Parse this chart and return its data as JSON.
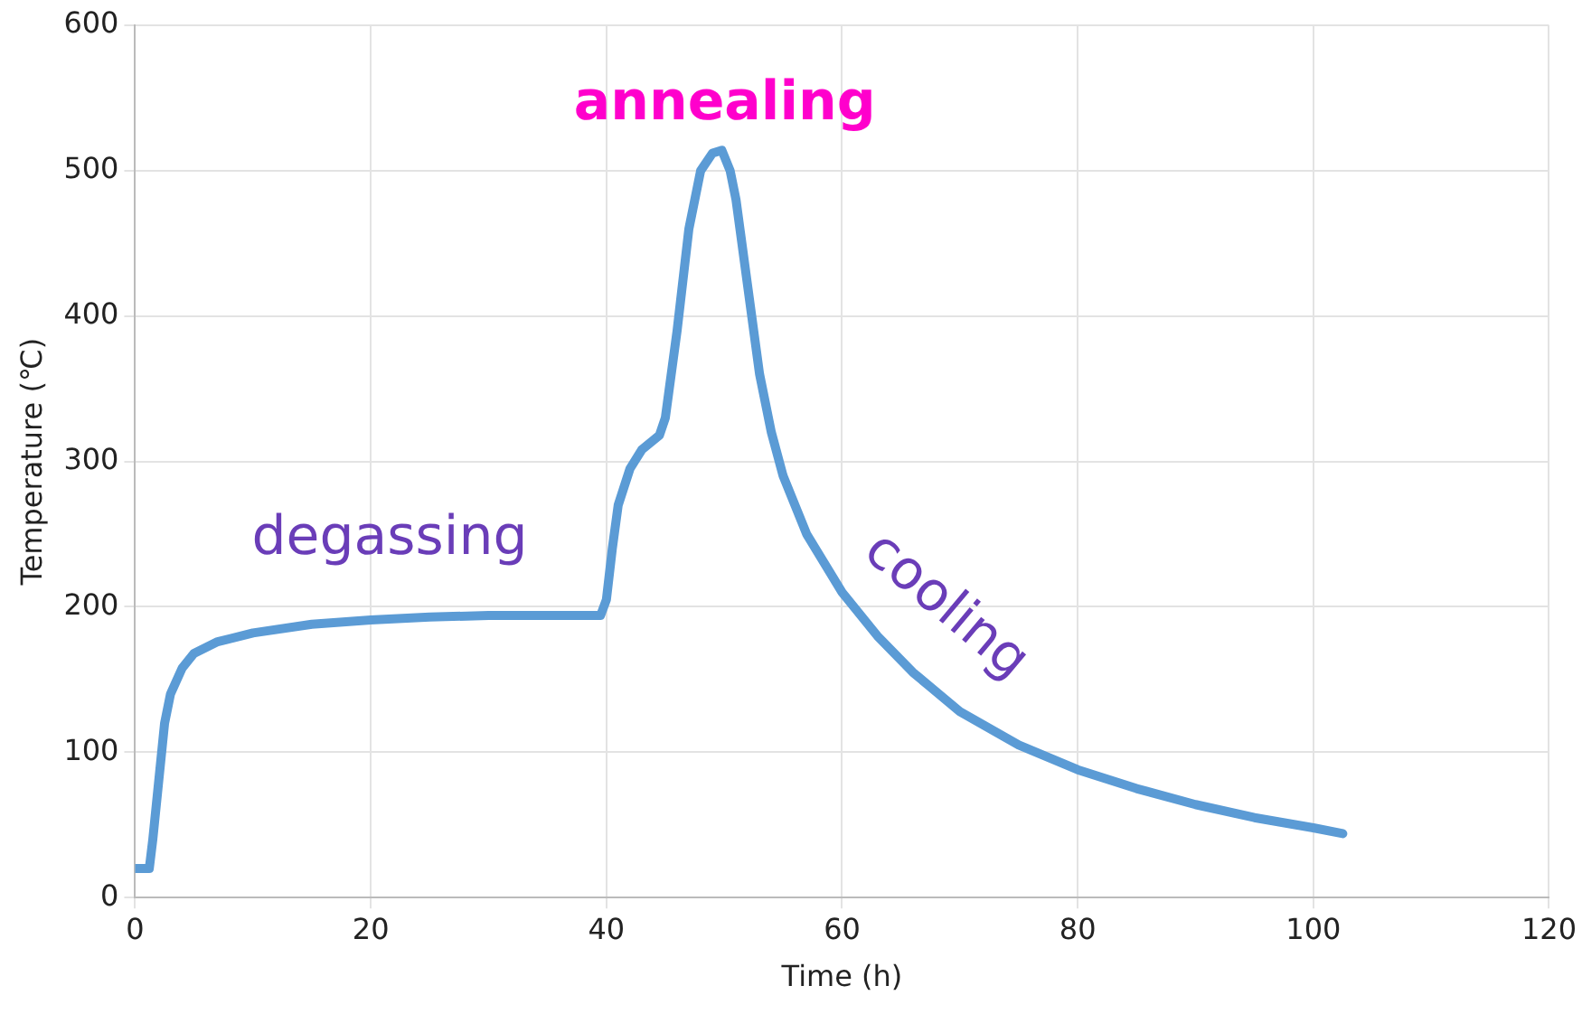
{
  "chart_data": {
    "type": "line",
    "xlabel": "Time (h)",
    "ylabel": "Temperature (℃)",
    "xlim": [
      0,
      120
    ],
    "xticks": [
      0,
      20,
      40,
      60,
      80,
      100,
      120
    ],
    "ylim": [
      0,
      600
    ],
    "yticks": [
      0,
      100,
      200,
      300,
      400,
      500,
      600
    ],
    "grid": true,
    "legend": false,
    "marker": "none",
    "line_style": "solid",
    "x": [
      0,
      1.2,
      1.5,
      2,
      2.5,
      3,
      4,
      5,
      7,
      10,
      15,
      20,
      25,
      30,
      39.5,
      40,
      40.5,
      41,
      42,
      43,
      44.5,
      45,
      46,
      47,
      48,
      49,
      49.8,
      50.5,
      51,
      52,
      53,
      54,
      55,
      57,
      60,
      63,
      66,
      70,
      75,
      80,
      85,
      90,
      95,
      100,
      102.5
    ],
    "series": [
      {
        "color": "#5b9bd5",
        "values": [
          20,
          20,
          40,
          80,
          120,
          140,
          158,
          168,
          176,
          182,
          188,
          191,
          193,
          194,
          194,
          205,
          240,
          270,
          295,
          308,
          318,
          330,
          390,
          460,
          500,
          512,
          514,
          500,
          480,
          420,
          360,
          320,
          290,
          250,
          210,
          180,
          155,
          128,
          105,
          88,
          75,
          64,
          55,
          48,
          44
        ]
      }
    ],
    "annotations": [
      "annealing",
      "degassing",
      "cooling"
    ]
  }
}
